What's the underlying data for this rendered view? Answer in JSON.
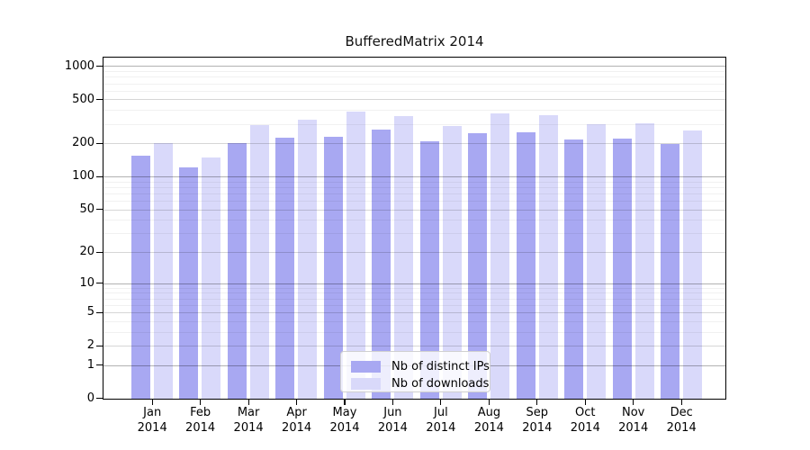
{
  "chart_data": {
    "type": "bar",
    "title": "BufferedMatrix 2014",
    "categories": [
      "Jan",
      "Feb",
      "Mar",
      "Apr",
      "May",
      "Jun",
      "Jul",
      "Aug",
      "Sep",
      "Oct",
      "Nov",
      "Dec"
    ],
    "year_label": "2014",
    "series": [
      {
        "name": "Nb of distinct IPs",
        "color": "#a8a8f2",
        "values": [
          156,
          121,
          204,
          226,
          230,
          269,
          209,
          248,
          253,
          220,
          223,
          200
        ]
      },
      {
        "name": "Nb of downloads",
        "color": "#d9d9fa",
        "values": [
          204,
          149,
          296,
          328,
          392,
          356,
          290,
          374,
          360,
          301,
          304,
          264
        ]
      }
    ],
    "yticks": [
      0,
      1,
      2,
      5,
      10,
      20,
      50,
      100,
      200,
      500,
      1000
    ],
    "decade_gridlines": [
      1,
      10,
      100,
      1000
    ],
    "minor_gridlines": [
      3,
      4,
      6,
      7,
      8,
      9,
      30,
      40,
      60,
      70,
      80,
      90,
      300,
      400,
      600,
      700,
      800,
      900
    ],
    "scale": "log10(1+x)",
    "ylim": [
      0,
      1193
    ],
    "grid": true,
    "legend_position": "lower center",
    "bar_border": "none",
    "axis_color": "#000000"
  }
}
